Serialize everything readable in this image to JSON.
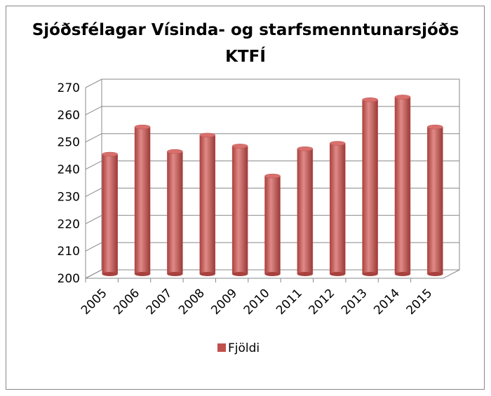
{
  "chart_data": {
    "type": "bar3d",
    "title": "Sjóðsfélagar Vísinda- og starfsmenntunarsjóðs KTFÍ",
    "categories": [
      "2005",
      "2006",
      "2007",
      "2008",
      "2009",
      "2010",
      "2011",
      "2012",
      "2013",
      "2014",
      "2015"
    ],
    "series": [
      {
        "name": "Fjöldi",
        "color": "#c0504d",
        "values": [
          244,
          254,
          245,
          251,
          247,
          236,
          246,
          248,
          264,
          265,
          254
        ]
      }
    ],
    "ylim": [
      200,
      270
    ],
    "yticks": [
      200,
      210,
      220,
      230,
      240,
      250,
      260,
      270
    ],
    "grid": true,
    "legend": "bottom"
  }
}
